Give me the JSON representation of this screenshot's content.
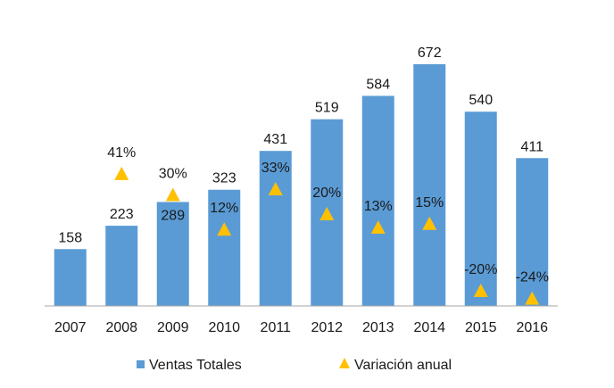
{
  "chart_data": {
    "type": "bar",
    "categories": [
      "2007",
      "2008",
      "2009",
      "2010",
      "2011",
      "2012",
      "2013",
      "2014",
      "2015",
      "2016"
    ],
    "series": [
      {
        "name": "Ventas Totales",
        "type": "bar",
        "values": [
          158,
          223,
          289,
          323,
          431,
          519,
          584,
          672,
          540,
          411
        ]
      },
      {
        "name": "Variación anual",
        "type": "scatter",
        "marker": "triangle",
        "values": [
          null,
          41,
          30,
          12,
          33,
          20,
          13,
          15,
          -20,
          -24
        ],
        "labels": [
          "",
          "41%",
          "30%",
          "12%",
          "33%",
          "20%",
          "13%",
          "15%",
          "-20%",
          "-24%"
        ]
      }
    ],
    "ylim": [
      0,
      700
    ],
    "y2lim": [
      -100,
      100
    ],
    "grid": false,
    "legend_position": "bottom",
    "colors": {
      "bar": "#5B9BD5",
      "marker": "#FFC000",
      "axis": "#A6A6A6"
    }
  }
}
